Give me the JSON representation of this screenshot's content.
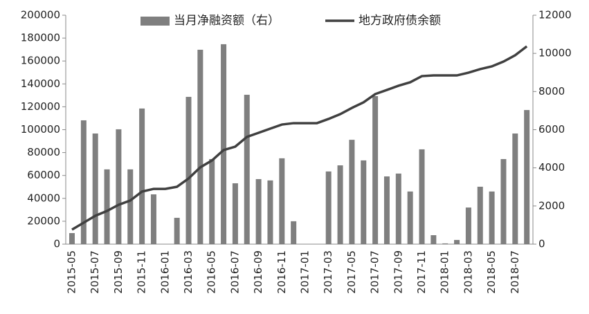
{
  "chart_data": {
    "type": "bar_line",
    "legend": "top",
    "categories": [
      "2015-05",
      null,
      "2015-07",
      null,
      "2015-09",
      null,
      "2015-11",
      null,
      "2016-01",
      null,
      "2016-03",
      null,
      "2016-05",
      null,
      "2016-07",
      null,
      "2016-09",
      null,
      "2016-11",
      null,
      "2017-01",
      null,
      "2017-03",
      null,
      "2017-05",
      null,
      "2017-07",
      null,
      "2017-09",
      null,
      "2017-11",
      null,
      "2018-01",
      null,
      "2018-03",
      null,
      "2018-05",
      null,
      "2018-07",
      null
    ],
    "series": [
      {
        "name": "当月净融资额（右）",
        "type": "bar",
        "axis": "y2",
        "color": "#7f7f7f",
        "values": [
          580,
          6490,
          5800,
          3920,
          6020,
          3920,
          7110,
          2610,
          0,
          1380,
          7720,
          10190,
          4460,
          10480,
          3190,
          7830,
          3410,
          3340,
          4500,
          1200,
          0,
          0,
          3810,
          4130,
          5470,
          4390,
          7760,
          3550,
          3700,
          2760,
          4970,
          470,
          40,
          220,
          1920,
          3010,
          2760,
          4460,
          5800,
          7030
        ]
      },
      {
        "name": "地方政府债余额",
        "type": "line",
        "axis": "y",
        "color": "#404040",
        "values": [
          12700,
          18700,
          24800,
          29000,
          34400,
          38100,
          45900,
          48300,
          48300,
          50100,
          57400,
          67100,
          73100,
          82200,
          85200,
          93700,
          97300,
          100900,
          104500,
          105700,
          105700,
          105700,
          109400,
          113600,
          119000,
          123900,
          131100,
          134700,
          138400,
          141400,
          146800,
          147400,
          147400,
          147400,
          149800,
          152900,
          155300,
          159500,
          165000,
          172800
        ]
      }
    ],
    "ylim": [
      0,
      200000
    ],
    "yticks": [
      0,
      20000,
      40000,
      60000,
      80000,
      100000,
      120000,
      140000,
      160000,
      180000,
      200000
    ],
    "y2lim": [
      0,
      12000
    ],
    "y2ticks": [
      0,
      2000,
      4000,
      6000,
      8000,
      10000,
      12000
    ]
  }
}
